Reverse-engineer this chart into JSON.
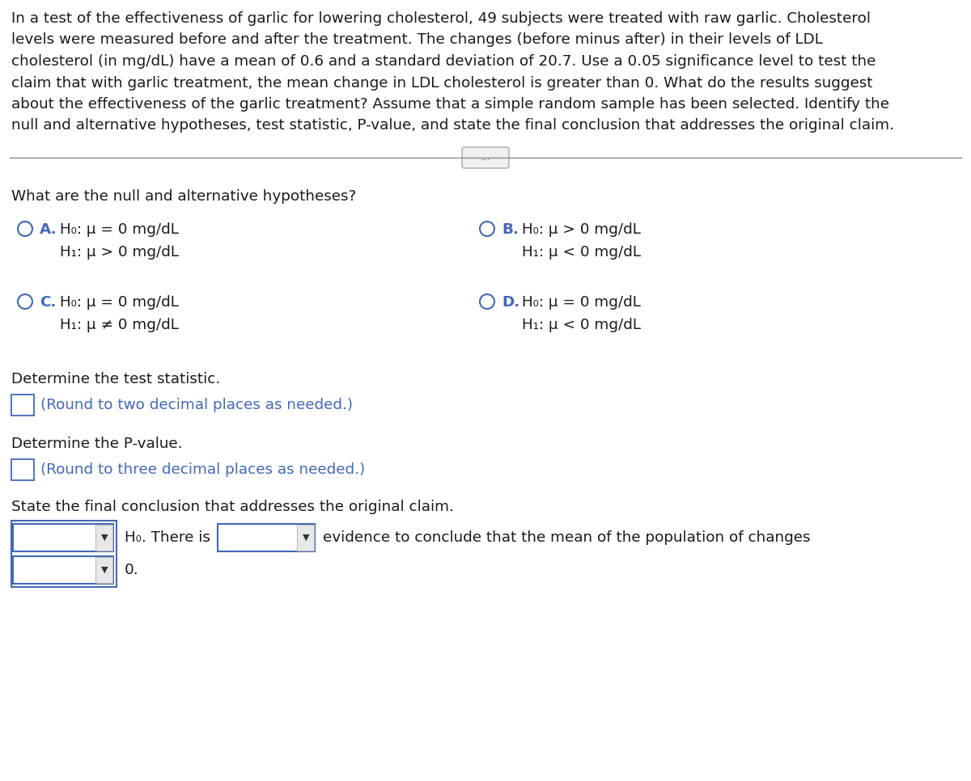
{
  "bg_color": "#ffffff",
  "text_color": "#1a1a1a",
  "blue_color": "#4169b8",
  "gray_color": "#888888",
  "light_gray": "#e8e8e8",
  "para_lines": [
    "In a test of the effectiveness of garlic for lowering cholesterol, 49 subjects were treated with raw garlic. Cholesterol",
    "levels were measured before and after the treatment. The changes (before minus after) in their levels of LDL",
    "cholesterol (in mg/dL) have a mean of 0.6 and a standard deviation of 20.7. Use a 0.05 significance level to test the",
    "claim that with garlic treatment, the mean change in LDL cholesterol is greater than 0. What do the results suggest",
    "about the effectiveness of the garlic treatment? Assume that a simple random sample has been selected. Identify the",
    "null and alternative hypotheses, test statistic, P-value, and state the final conclusion that addresses the original claim."
  ],
  "question": "What are the null and alternative hypotheses?",
  "optA_label": "A.",
  "optA_h0": "H₀: μ = 0 mg/dL",
  "optA_h1": "H₁: μ > 0 mg/dL",
  "optB_label": "B.",
  "optB_h0": "H₀: μ > 0 mg/dL",
  "optB_h1": "H₁: μ < 0 mg/dL",
  "optC_label": "C.",
  "optC_h0": "H₀: μ = 0 mg/dL",
  "optC_h1": "H₁: μ ≠ 0 mg/dL",
  "optD_label": "D.",
  "optD_h0": "H₀: μ = 0 mg/dL",
  "optD_h1": "H₁: μ < 0 mg/dL",
  "det_stat": "Determine the test statistic.",
  "round2": "(Round to two decimal places as needed.)",
  "det_pval": "Determine the P-value.",
  "round3": "(Round to three decimal places as needed.)",
  "state_final": "State the final conclusion that addresses the original claim.",
  "h0_there_is": "H₀. There is",
  "evidence_text": "evidence to conclude that the mean of the population of changes",
  "zero_text": "0.",
  "dots": "...",
  "para_fontsize": 13.2,
  "body_fontsize": 13.2,
  "small_fontsize": 10.5
}
